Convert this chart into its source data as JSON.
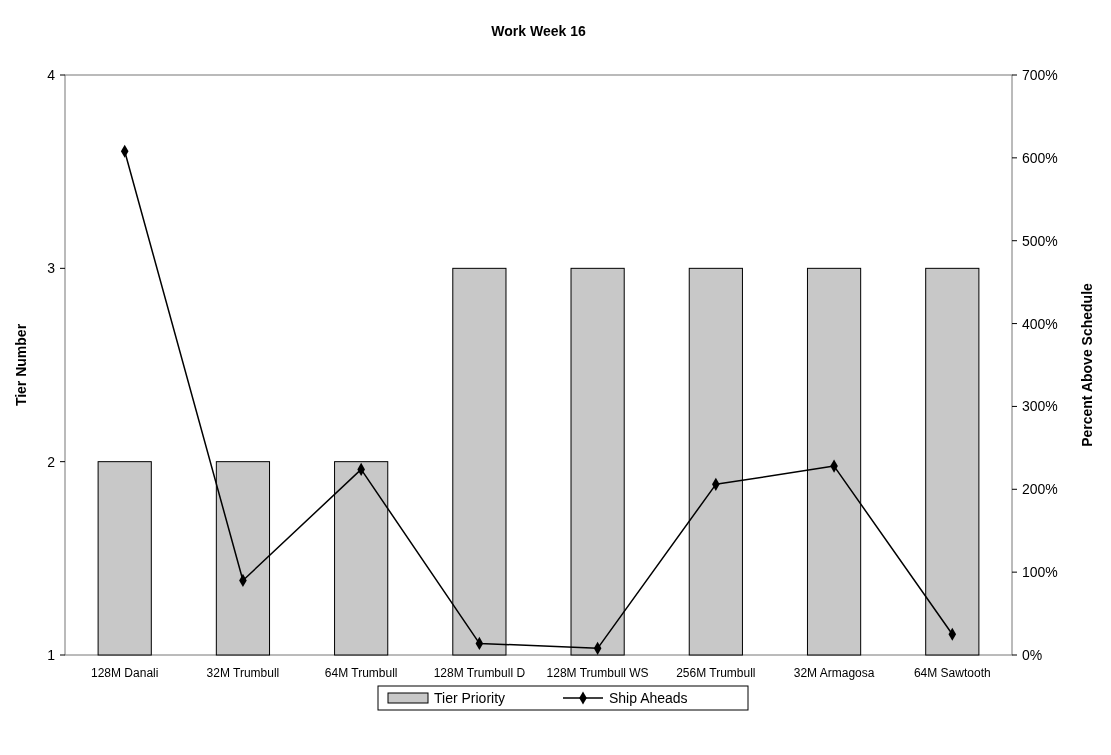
{
  "chart_data": {
    "type": "bar",
    "title": "Work Week 16",
    "ylabel": "Tier Number",
    "y2label": "Percent Above Schedule",
    "categories": [
      "128M Danali",
      "32M Trumbull",
      "64M Trumbull",
      "128M Trumbull D",
      "128M Trumbull WS",
      "256M Trumbull",
      "32M Armagosa",
      "64M Sawtooth"
    ],
    "series": [
      {
        "name": "Tier Priority",
        "color": "#c8c8c8",
        "values": [
          2,
          2,
          2,
          3,
          3,
          3,
          3,
          3
        ]
      },
      {
        "name": "Ship Aheads",
        "type": "line",
        "axis": "y2",
        "color": "#000000",
        "values": [
          608,
          90,
          224,
          14,
          8,
          206,
          228,
          25
        ]
      }
    ],
    "ylim": [
      1,
      4
    ],
    "yticks": [
      1,
      2,
      3,
      4
    ],
    "y2lim": [
      0,
      700
    ],
    "y2ticks": [
      {
        "value": 0,
        "label": "0%"
      },
      {
        "value": 100,
        "label": "100%"
      },
      {
        "value": 200,
        "label": "200%"
      },
      {
        "value": 300,
        "label": "300%"
      },
      {
        "value": 400,
        "label": "400%"
      },
      {
        "value": 500,
        "label": "500%"
      },
      {
        "value": 600,
        "label": "600%"
      },
      {
        "value": 700,
        "label": "700%"
      }
    ],
    "marker": "diamond",
    "legend": "bottom",
    "grid": false
  }
}
